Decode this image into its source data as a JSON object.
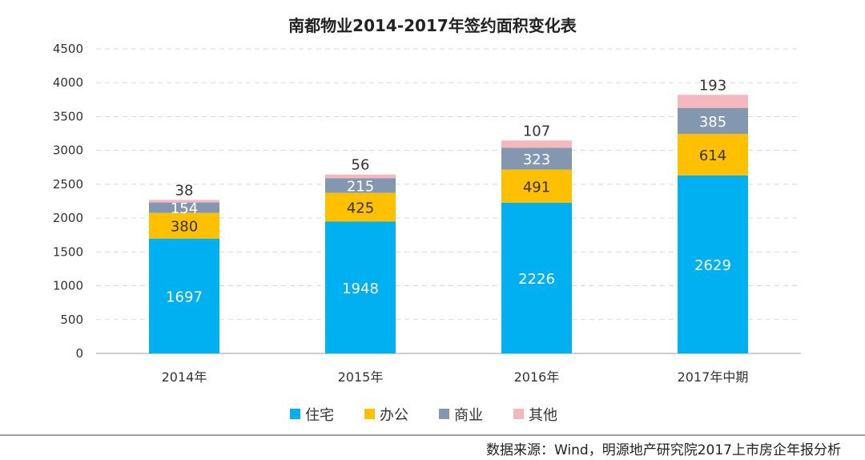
{
  "chart_data": {
    "type": "bar",
    "stacked": true,
    "title": "南都物业2014-2017年签约面积变化表",
    "categories": [
      "2014年",
      "2015年",
      "2016年",
      "2017年中期"
    ],
    "series": [
      {
        "name": "住宅",
        "color": "#00B0F0",
        "label_color": "#ffffff",
        "values": [
          1697,
          1948,
          2226,
          2629
        ]
      },
      {
        "name": "办公",
        "color": "#FFC000",
        "label_color": "#333333",
        "values": [
          380,
          425,
          491,
          614
        ]
      },
      {
        "name": "商业",
        "color": "#8497B0",
        "label_color": "#ffffff",
        "values": [
          154,
          215,
          323,
          385
        ]
      },
      {
        "name": "其他",
        "color": "#F4B8BE",
        "label_color": "#333333",
        "values": [
          38,
          56,
          107,
          193
        ]
      }
    ],
    "ylim": [
      0,
      4500
    ],
    "yticks": [
      "0",
      "500",
      "1000",
      "1500",
      "2000",
      "2500",
      "3000",
      "3500",
      "4000",
      "4500"
    ],
    "grid": true,
    "legend_position": "bottom"
  },
  "source": "数据来源：Wind，明源地产研究院2017上市房企年报分析"
}
